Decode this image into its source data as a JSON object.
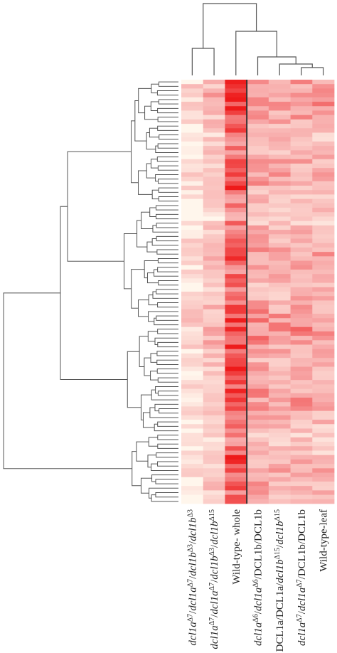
{
  "chart_data": {
    "type": "heatmap",
    "title": "",
    "xlabel": "",
    "ylabel": "",
    "columns": [
      {
        "id": "c1",
        "parts": [
          {
            "t": "dcl1a",
            "it": true
          },
          {
            "t": "Δ7",
            "sup": true
          },
          {
            "t": "/",
            "it": false
          },
          {
            "t": "dcl1a",
            "it": true
          },
          {
            "t": "Δ7",
            "sup": true
          },
          {
            "t": "/",
            "it": false
          },
          {
            "t": "dcl1b",
            "it": true
          },
          {
            "t": "Δ3",
            "sup": true
          },
          {
            "t": "/",
            "it": false
          },
          {
            "t": "dcl1b",
            "it": true
          },
          {
            "t": "Δ3",
            "sup": true
          }
        ]
      },
      {
        "id": "c2",
        "parts": [
          {
            "t": "dcl1a",
            "it": true
          },
          {
            "t": "Δ7",
            "sup": true
          },
          {
            "t": "/",
            "it": false
          },
          {
            "t": "dcl1a",
            "it": true
          },
          {
            "t": "Δ7",
            "sup": true
          },
          {
            "t": "/",
            "it": false
          },
          {
            "t": "dcl1b",
            "it": true
          },
          {
            "t": "Δ3",
            "sup": true
          },
          {
            "t": "/",
            "it": false
          },
          {
            "t": "dcl1b",
            "it": true
          },
          {
            "t": "Δ15",
            "sup": true
          }
        ]
      },
      {
        "id": "c3",
        "parts": [
          {
            "t": "Wild-type- whole",
            "it": false
          }
        ]
      },
      {
        "id": "c4",
        "parts": [
          {
            "t": "dcl1a",
            "it": true
          },
          {
            "t": "Δ6",
            "sup": true
          },
          {
            "t": "/",
            "it": false
          },
          {
            "t": "dcl1a",
            "it": true
          },
          {
            "t": "Δ6",
            "sup": true
          },
          {
            "t": "/DCL1b/DCL1b",
            "it": false
          }
        ]
      },
      {
        "id": "c5",
        "parts": [
          {
            "t": "DCL1a/DCL1a/",
            "it": false
          },
          {
            "t": "dcl1b",
            "it": true
          },
          {
            "t": "Δ15",
            "sup": true
          },
          {
            "t": "/",
            "it": false
          },
          {
            "t": "dcl1b",
            "it": true
          },
          {
            "t": "Δ15",
            "sup": true
          }
        ]
      },
      {
        "id": "c6",
        "parts": [
          {
            "t": "dcl1a",
            "it": true
          },
          {
            "t": "Δ7",
            "sup": true
          },
          {
            "t": "/",
            "it": false
          },
          {
            "t": "dcl1a",
            "it": true
          },
          {
            "t": "Δ7",
            "sup": true
          },
          {
            "t": "/DCL1b/DCL1b",
            "it": false
          }
        ]
      },
      {
        "id": "c7",
        "parts": [
          {
            "t": "Wild-type-leaf",
            "it": false
          }
        ]
      }
    ],
    "row_count": 96,
    "col_base": [
      0.12,
      0.3,
      0.7,
      0.45,
      0.4,
      0.42,
      0.4
    ],
    "colors": {
      "low": "#fff6ec",
      "mid": "#f7a6a6",
      "high": "#ee1a1a",
      "divider": "#333333",
      "tree": "#555555"
    }
  }
}
